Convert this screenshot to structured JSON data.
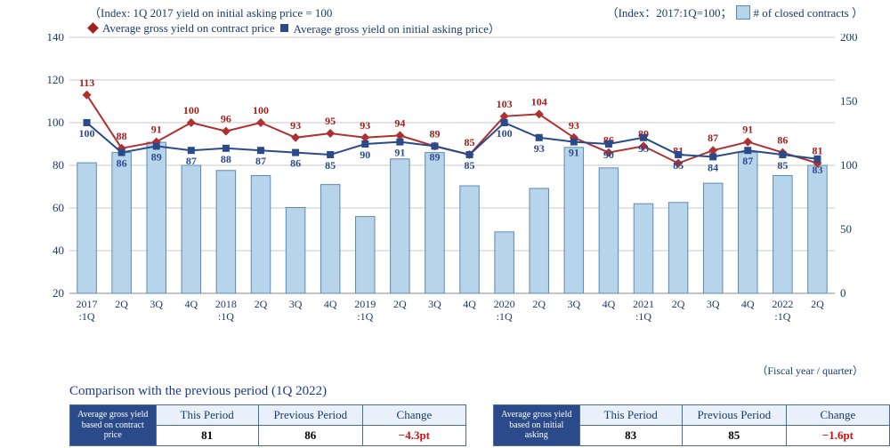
{
  "legend": {
    "index_note": "（Index: 1Q 2017 yield on initial asking price = 100",
    "index_right": "（Index：2017:1Q=100；",
    "bars_label": "# of closed contracts ）",
    "diamond_label": "Average gross yield on contract price",
    "square_label": "Average gross yield on initial asking price）"
  },
  "axes": {
    "left_min": 20,
    "left_max": 140,
    "left_step": 20,
    "right_min": 0,
    "right_max": 200,
    "right_step": 50,
    "grid_color": "#c8c8c8",
    "axis_color": "#888888",
    "label_color": "#1a3a6e",
    "label_fontsize": 13,
    "x_footer": "（Fiscal year / quarter）"
  },
  "series": {
    "periods": [
      "2017\n:1Q",
      "2Q",
      "3Q",
      "4Q",
      "2018\n:1Q",
      "2Q",
      "3Q",
      "4Q",
      "2019\n:1Q",
      "2Q",
      "3Q",
      "4Q",
      "2020\n:1Q",
      "2Q",
      "3Q",
      "4Q",
      "2021\n:1Q",
      "2Q",
      "3Q",
      "4Q",
      "2022\n:1Q",
      "2Q"
    ],
    "contract_price_yield": {
      "values": [
        113,
        88,
        91,
        100,
        96,
        100,
        93,
        95,
        93,
        94,
        89,
        85,
        103,
        104,
        93,
        86,
        89,
        81,
        87,
        91,
        86,
        81
      ],
      "color": "#b03030",
      "text_color": "#a02020",
      "marker": "diamond",
      "line_width": 2
    },
    "initial_asking_yield": {
      "values": [
        100,
        86,
        89,
        87,
        88,
        87,
        86,
        85,
        90,
        91,
        89,
        85,
        100,
        93,
        91,
        90,
        93,
        85,
        84,
        87,
        85,
        83
      ],
      "color": "#2a4a8a",
      "text_color": "#2a4a8a",
      "marker": "square",
      "line_width": 2
    },
    "closed_contracts": {
      "values": [
        102,
        110,
        118,
        100,
        96,
        92,
        67,
        85,
        60,
        105,
        110,
        84,
        48,
        82,
        114,
        98,
        70,
        71,
        86,
        110,
        92,
        100
      ],
      "fill_color": "#b8d4ea",
      "stroke_color": "#5a8ab8",
      "bar_width_ratio": 0.55
    }
  },
  "comparison": {
    "title": "Comparison with the previous period (1Q 2022)",
    "headers": [
      "This Period",
      "Previous Period",
      "Change"
    ],
    "table1": {
      "label": "Average gross yield based on contract price",
      "this_period": "81",
      "previous_period": "86",
      "change": "−4.3pt"
    },
    "table2": {
      "label": "Average gross yield based on initial asking",
      "this_period": "83",
      "previous_period": "85",
      "change": "−1.6pt"
    }
  }
}
